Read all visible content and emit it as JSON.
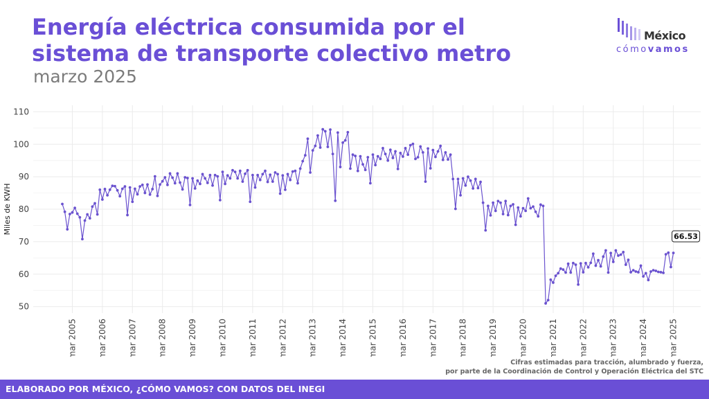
{
  "header": {
    "title_line1": "Energía eléctrica consumida por el",
    "title_line2": "sistema de transporte colectivo metro",
    "subtitle": "marzo 2025"
  },
  "logo": {
    "name": "México",
    "sub_light": "cómo",
    "sub_bold": "vamos"
  },
  "note": {
    "line1": "Cifras estimadas para tracción, alumbrado y fuerza,",
    "line2": "por parte de la Coordinación de Control y Operación Eléctrica del STC"
  },
  "footer": {
    "text": "ELABORADO POR MÉXICO, ¿CÓMO VAMOS? CON DATOS DEL INEGI"
  },
  "colors": {
    "accent": "#6a4fd6",
    "line": "#6a52cf",
    "grid": "#ebebeb"
  },
  "chart_data": {
    "type": "line",
    "ylabel": "Miles de KWH",
    "ylim": [
      48,
      112
    ],
    "y_ticks": [
      50,
      60,
      70,
      80,
      90,
      100,
      110
    ],
    "x_ticks": [
      "mar 2005",
      "mar 2006",
      "mar 2007",
      "mar 2008",
      "mar 2009",
      "mar 2010",
      "mar 2011",
      "mar 2012",
      "mar 2013",
      "mar 2014",
      "mar 2015",
      "mar 2016",
      "mar 2017",
      "mar 2018",
      "mar 2019",
      "mar 2020",
      "mar 2021",
      "mar 2022",
      "mar 2023",
      "mar 2024",
      "mar 2025"
    ],
    "grid": true,
    "start_month": "2004-11",
    "end_label": "66.53",
    "series": [
      {
        "values": [
          81.6,
          79.2,
          73.8,
          78.5,
          79.0,
          80.4,
          78.6,
          77.5,
          70.8,
          76.5,
          78.4,
          77.2,
          80.8,
          81.8,
          78.4,
          86.0,
          83.0,
          86.2,
          84.3,
          86.0,
          87.2,
          87.1,
          85.8,
          84.0,
          86.3,
          87.0,
          78.2,
          86.7,
          82.3,
          86.3,
          84.6,
          87.0,
          87.5,
          85.0,
          87.6,
          84.5,
          86.2,
          90.1,
          84.1,
          87.6,
          88.6,
          89.8,
          87.5,
          91.0,
          89.7,
          88.0,
          91.0,
          88.2,
          86.1,
          89.8,
          89.6,
          81.3,
          89.5,
          86.4,
          88.8,
          87.8,
          90.8,
          89.5,
          88.1,
          90.5,
          87.3,
          90.5,
          90.1,
          82.8,
          91.5,
          87.8,
          90.4,
          89.5,
          92.0,
          91.5,
          89.5,
          91.8,
          88.5,
          90.9,
          92.0,
          82.3,
          90.5,
          86.7,
          90.5,
          89.0,
          90.8,
          91.8,
          88.4,
          90.6,
          88.5,
          91.3,
          90.8,
          84.8,
          90.4,
          86.0,
          90.8,
          89.0,
          91.6,
          91.8,
          88.0,
          92.5,
          94.8,
          96.6,
          101.7,
          91.3,
          98.1,
          99.5,
          102.7,
          99.0,
          104.6,
          104.0,
          99.2,
          104.5,
          97.0,
          82.6,
          103.6,
          93.0,
          100.5,
          101.2,
          103.7,
          92.5,
          96.8,
          96.4,
          91.8,
          96.3,
          93.8,
          92.1,
          96.0,
          88.0,
          96.8,
          93.6,
          96.3,
          95.5,
          98.8,
          97.0,
          95.0,
          98.3,
          95.8,
          97.8,
          92.4,
          97.3,
          96.2,
          98.8,
          96.8,
          99.7,
          100.1,
          95.5,
          96.0,
          99.3,
          97.5,
          88.5,
          98.7,
          92.6,
          98.2,
          96.1,
          97.8,
          99.5,
          95.2,
          97.5,
          95.3,
          96.8,
          89.3,
          80.1,
          89.3,
          84.3,
          89.5,
          87.3,
          90.0,
          88.8,
          86.4,
          89.3,
          86.5,
          88.4,
          82.0,
          73.5,
          81.0,
          78.1,
          82.0,
          79.5,
          82.5,
          82.0,
          78.5,
          82.5,
          78.2,
          81.0,
          81.5,
          75.2,
          80.5,
          77.8,
          80.3,
          79.5,
          83.3,
          80.3,
          80.8,
          79.2,
          77.8,
          81.4,
          81.0,
          51.0,
          52.0,
          58.3,
          57.4,
          59.5,
          60.3,
          61.7,
          61.4,
          60.5,
          63.2,
          60.5,
          63.4,
          62.9,
          56.8,
          63.3,
          60.6,
          63.4,
          62.1,
          63.5,
          66.3,
          62.6,
          64.3,
          62.4,
          65.4,
          67.3,
          60.5,
          66.5,
          63.8,
          67.3,
          65.7,
          66.0,
          66.8,
          62.9,
          64.4,
          60.6,
          61.2,
          60.8,
          60.6,
          62.6,
          59.3,
          60.3,
          58.2,
          60.8,
          61.2,
          61.0,
          60.7,
          60.6,
          60.4,
          66.1,
          66.6,
          62.2,
          66.53
        ]
      }
    ]
  }
}
